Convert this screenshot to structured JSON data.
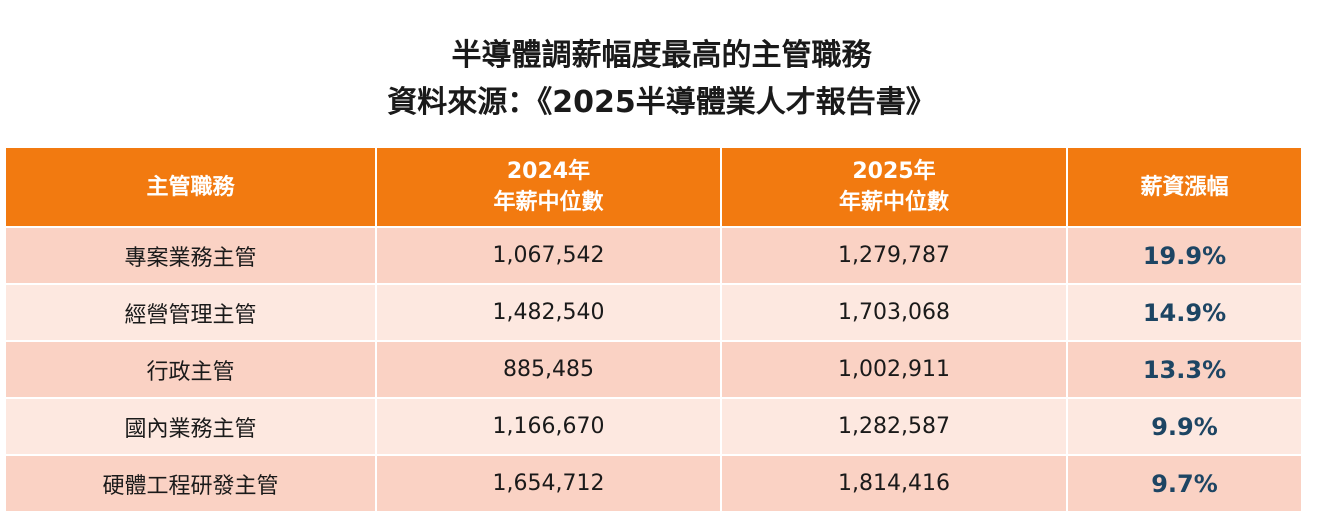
{
  "title": "半導體調薪幅度最高的主管職務",
  "subtitle": "資料來源：《2025半導體業人才報告書》",
  "chart_data": {
    "type": "table",
    "columns": [
      {
        "line1": "主管職務",
        "line2": ""
      },
      {
        "line1": "2024年",
        "line2": "年薪中位數"
      },
      {
        "line1": "2025年",
        "line2": "年薪中位數"
      },
      {
        "line1": "薪資漲幅",
        "line2": ""
      }
    ],
    "rows": [
      {
        "role": "專案業務主管",
        "y2024": "1,067,542",
        "y2025": "1,279,787",
        "growth": "19.9%"
      },
      {
        "role": "經營管理主管",
        "y2024": "1,482,540",
        "y2025": "1,703,068",
        "growth": "14.9%"
      },
      {
        "role": "行政主管",
        "y2024": "885,485",
        "y2025": "1,002,911",
        "growth": "13.3%"
      },
      {
        "role": "國內業務主管",
        "y2024": "1,166,670",
        "y2025": "1,282,587",
        "growth": "9.9%"
      },
      {
        "role": "硬體工程研發主管",
        "y2024": "1,654,712",
        "y2025": "1,814,416",
        "growth": "9.7%"
      }
    ]
  },
  "colors": {
    "header_bg": "#f27a10",
    "row_odd": "#fad2c4",
    "row_even": "#fde8e0",
    "growth_text": "#1d4563"
  }
}
